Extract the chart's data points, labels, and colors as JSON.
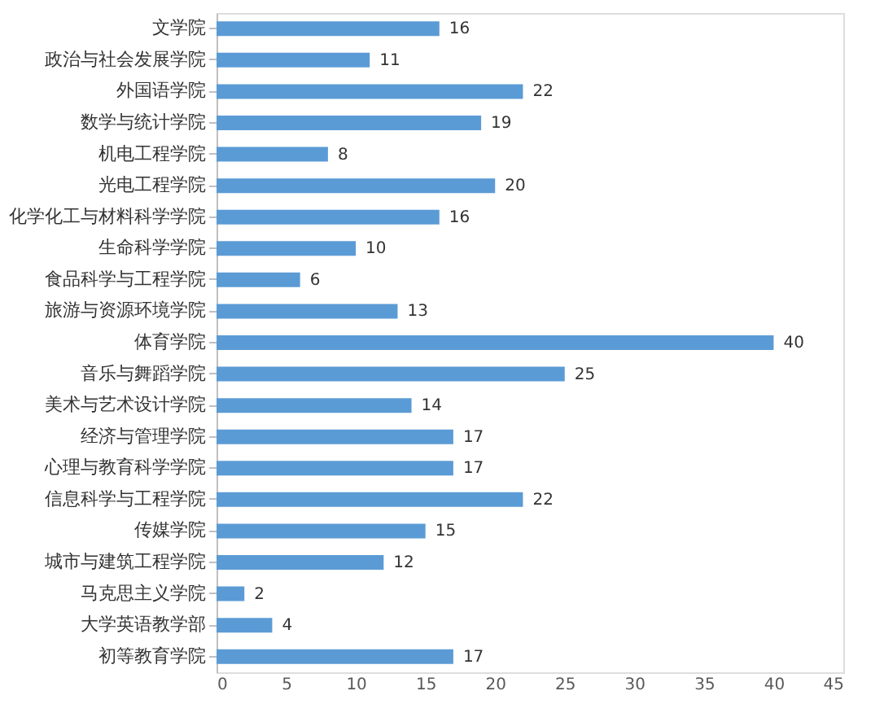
{
  "chart_data": {
    "type": "bar",
    "orientation": "horizontal",
    "color": "#5b9bd5",
    "data_labels": true,
    "grid": false,
    "categories": [
      "文学院",
      "政治与社会发展学院",
      "外国语学院",
      "数学与统计学院",
      "机电工程学院",
      "光电工程学院",
      "化学化工与材料科学学院",
      "生命科学学院",
      "食品科学与工程学院",
      "旅游与资源环境学院",
      "体育学院",
      "音乐与舞蹈学院",
      "美术与艺术设计学院",
      "经济与管理学院",
      "心理与教育科学学院",
      "信息科学与工程学院",
      "传媒学院",
      "城市与建筑工程学院",
      "马克思主义学院",
      "大学英语教学部",
      "初等教育学院"
    ],
    "values": [
      16,
      11,
      22,
      19,
      8,
      20,
      16,
      10,
      6,
      13,
      40,
      25,
      14,
      17,
      17,
      22,
      15,
      12,
      2,
      4,
      17
    ],
    "xlim": [
      0,
      45
    ],
    "xticks": [
      0,
      5,
      10,
      15,
      20,
      25,
      30,
      35,
      40,
      45
    ]
  }
}
